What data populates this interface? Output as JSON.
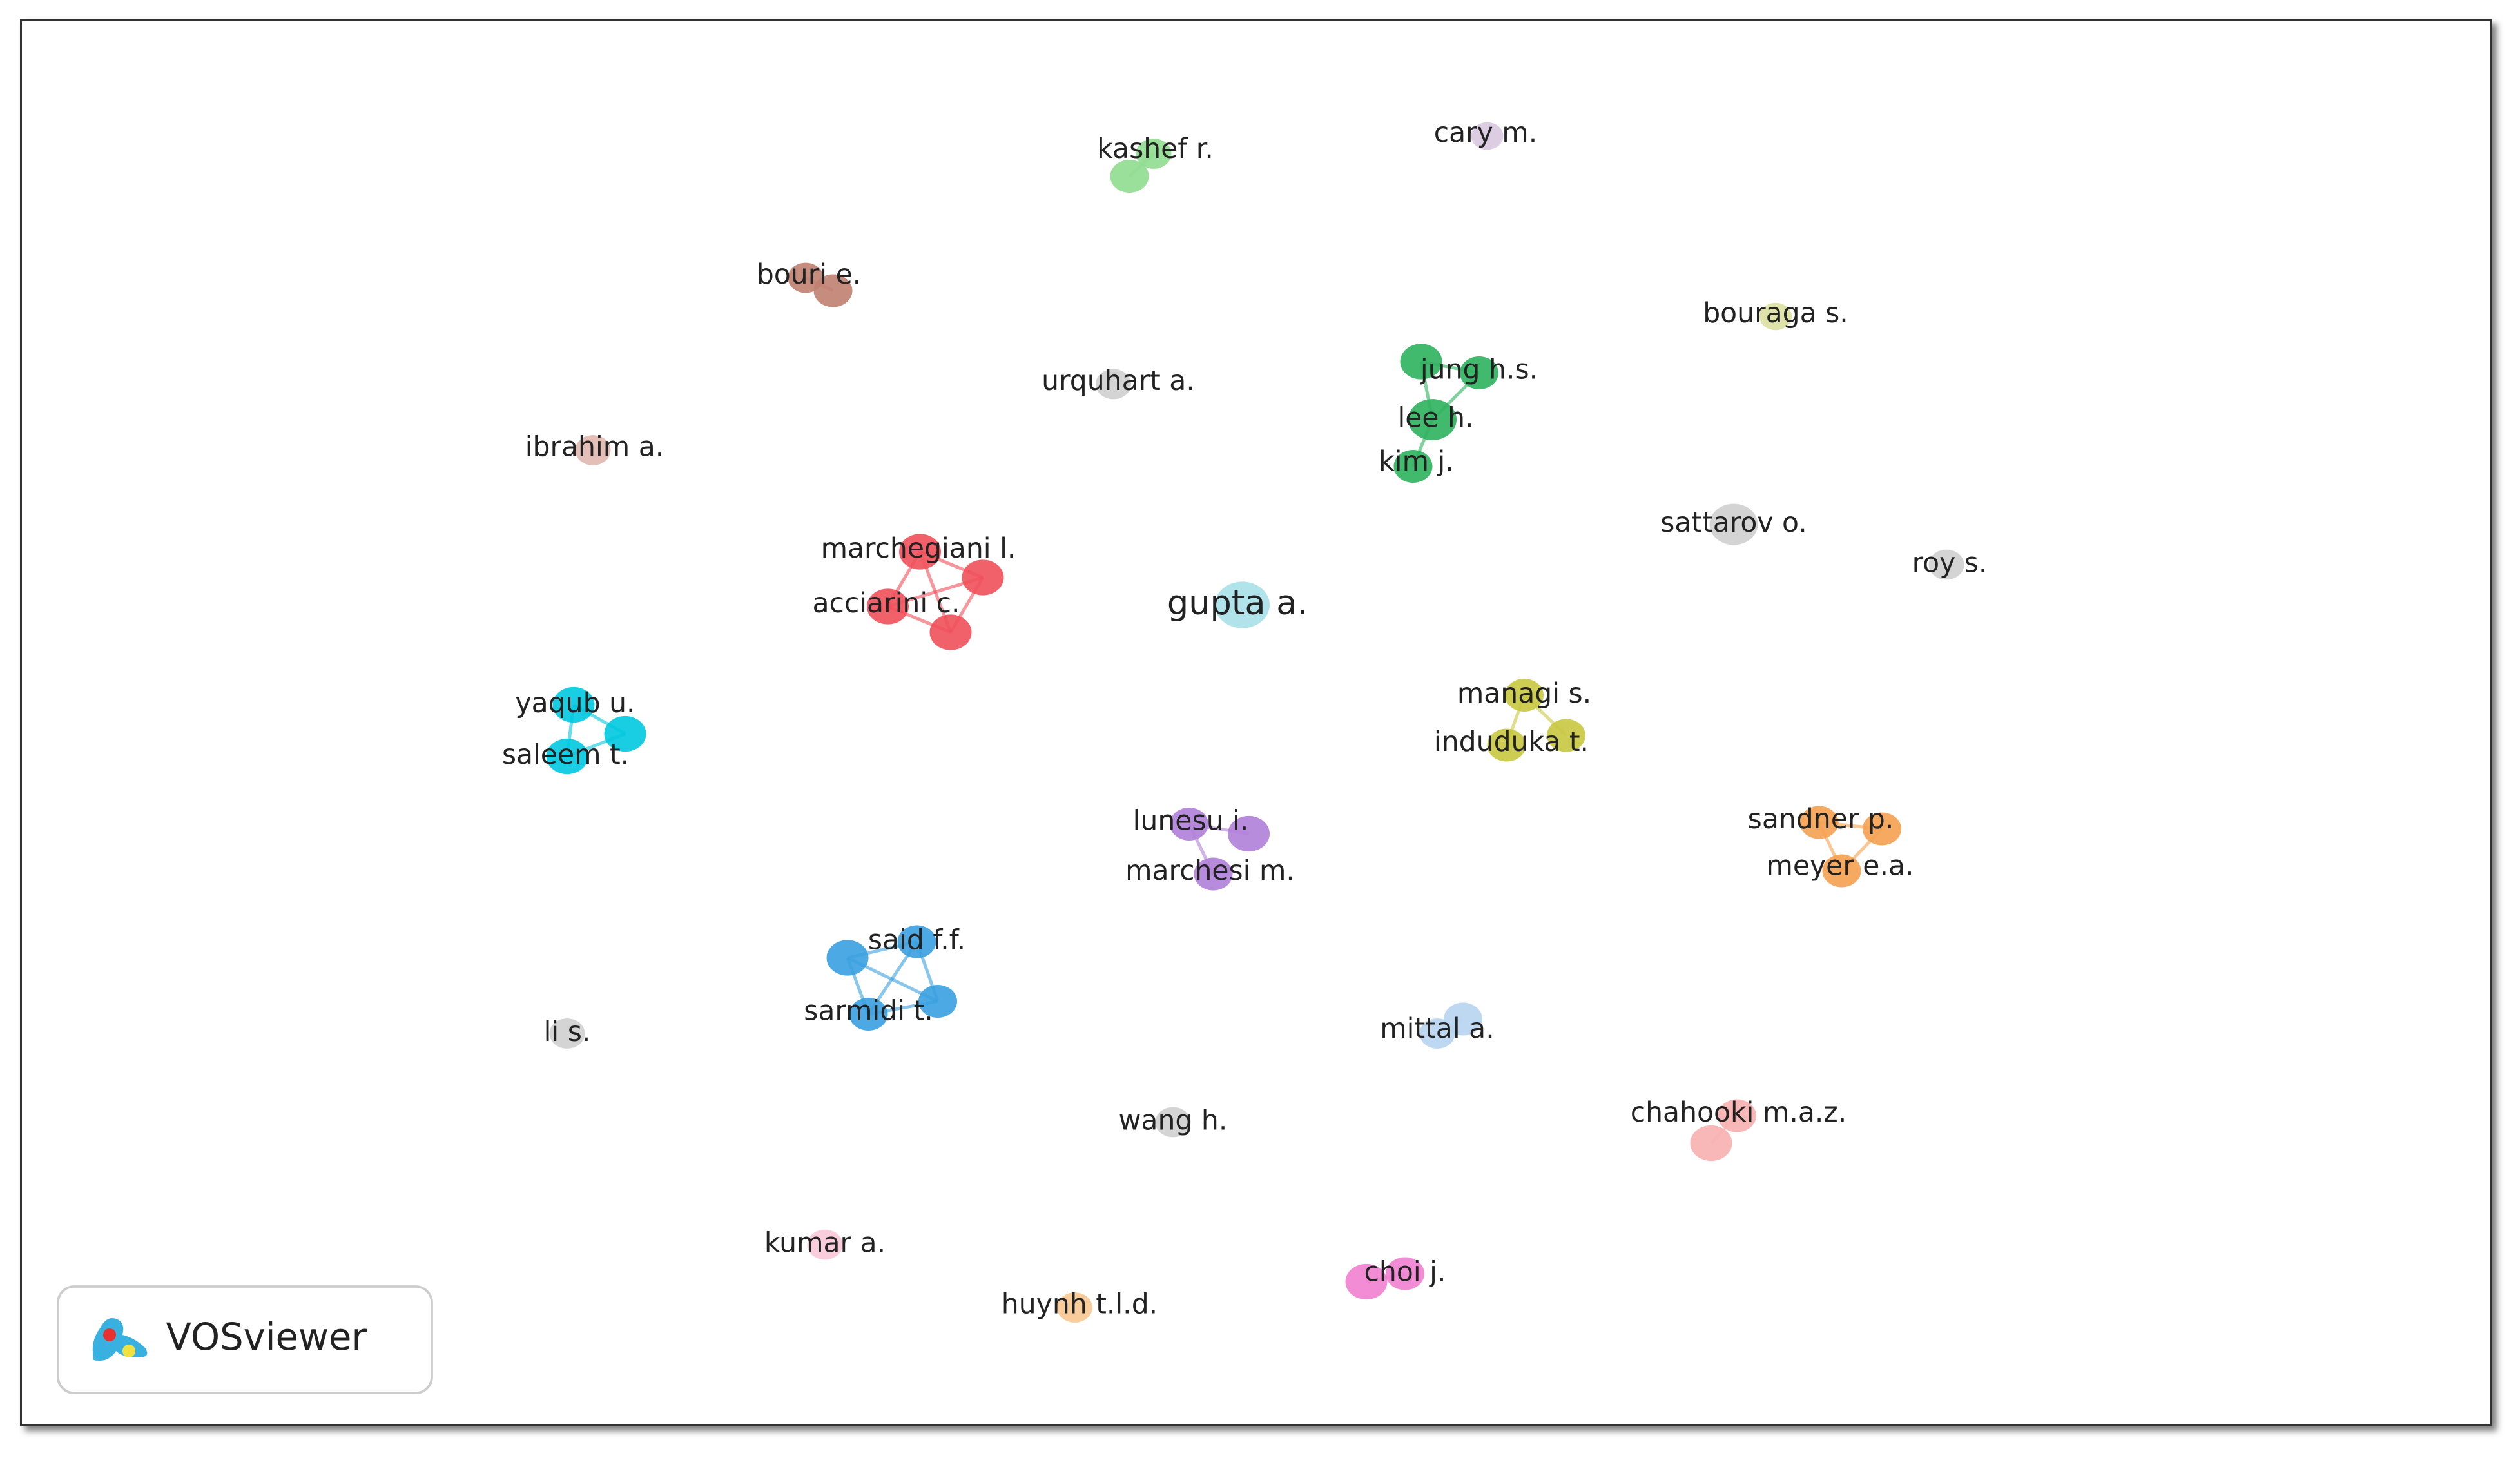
{
  "nodes": [
    {
      "label": "kashef r."
    },
    {
      "label": "cary m."
    },
    {
      "label": "bouri e."
    },
    {
      "label": "bouraga s."
    },
    {
      "label": "urquhart a."
    },
    {
      "label": "jung h.s."
    },
    {
      "label": "lee h."
    },
    {
      "label": "kim j."
    },
    {
      "label": "ibrahim a."
    },
    {
      "label": "sattarov o."
    },
    {
      "label": "roy s."
    },
    {
      "label": "marchegiani l."
    },
    {
      "label": "acciarini c."
    },
    {
      "label": "gupta a."
    },
    {
      "label": "yaqub u."
    },
    {
      "label": "saleem t."
    },
    {
      "label": "managi s."
    },
    {
      "label": "induduka t."
    },
    {
      "label": "lunesu i."
    },
    {
      "label": "marchesi m."
    },
    {
      "label": "sandner p."
    },
    {
      "label": "meyer e.a."
    },
    {
      "label": "said f.f."
    },
    {
      "label": "sarmidi t."
    },
    {
      "label": "li s."
    },
    {
      "label": "mittal a."
    },
    {
      "label": "wang h."
    },
    {
      "label": "chahooki m.a.z."
    },
    {
      "label": "kumar a."
    },
    {
      "label": "huynh t.l.d."
    },
    {
      "label": "choi j."
    }
  ],
  "logo": {
    "text": "VOSviewer"
  }
}
